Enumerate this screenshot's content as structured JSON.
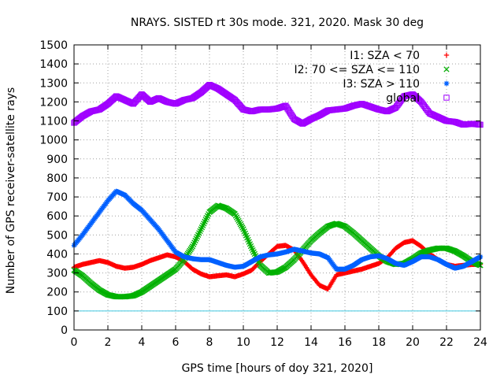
{
  "chart_data": {
    "type": "scatter",
    "title": "NRAYS. SISTED rt 30s mode. 321, 2020. Mask 30 deg",
    "xlabel": "GPS time [hours of doy 321, 2020]",
    "ylabel": "Number of GPS receiver-satellite rays",
    "xlim": [
      0,
      24
    ],
    "ylim": [
      0,
      1500
    ],
    "xticks": [
      "0",
      "2",
      "4",
      "6",
      "8",
      "10",
      "12",
      "14",
      "16",
      "18",
      "20",
      "22",
      "24"
    ],
    "yticks": [
      "0",
      "100",
      "200",
      "300",
      "400",
      "500",
      "600",
      "700",
      "800",
      "900",
      "1000",
      "1100",
      "1200",
      "1300",
      "1400",
      "1500"
    ],
    "grid": true,
    "legend_position": "top-right",
    "reference_line": {
      "y": 100,
      "color": "#40c8e0"
    },
    "series": [
      {
        "name": "I1: SZA < 70",
        "marker": "+",
        "color": "#ff0000",
        "x": [
          0,
          0.5,
          1,
          1.5,
          2,
          2.5,
          3,
          3.5,
          4,
          4.5,
          5,
          5.5,
          6,
          6.5,
          7,
          7.5,
          8,
          8.5,
          9,
          9.5,
          10,
          10.5,
          11,
          11.5,
          12,
          12.5,
          13,
          13.5,
          14,
          14.5,
          15,
          15.5,
          16,
          16.5,
          17,
          17.5,
          18,
          18.5,
          19,
          19.5,
          20,
          20.5,
          21,
          21.5,
          22,
          22.5,
          23,
          23.5,
          24
        ],
        "values": [
          330,
          345,
          355,
          365,
          355,
          335,
          325,
          330,
          345,
          365,
          380,
          395,
          385,
          360,
          320,
          295,
          280,
          285,
          290,
          280,
          295,
          315,
          360,
          400,
          440,
          445,
          420,
          360,
          290,
          235,
          215,
          290,
          300,
          310,
          320,
          335,
          350,
          380,
          430,
          460,
          470,
          440,
          400,
          370,
          345,
          335,
          340,
          345,
          345
        ]
      },
      {
        "name": "I2: 70 <= SZA <= 110",
        "marker": "x",
        "color": "#00b000",
        "x": [
          0,
          0.5,
          1,
          1.5,
          2,
          2.5,
          3,
          3.5,
          4,
          4.5,
          5,
          5.5,
          6,
          6.5,
          7,
          7.5,
          8,
          8.5,
          9,
          9.5,
          10,
          10.5,
          11,
          11.5,
          12,
          12.5,
          13,
          13.5,
          14,
          14.5,
          15,
          15.5,
          16,
          16.5,
          17,
          17.5,
          18,
          18.5,
          19,
          19.5,
          20,
          20.5,
          21,
          21.5,
          22,
          22.5,
          23,
          23.5,
          24
        ],
        "values": [
          315,
          285,
          245,
          210,
          185,
          175,
          175,
          180,
          200,
          230,
          260,
          290,
          320,
          370,
          440,
          530,
          620,
          655,
          640,
          610,
          530,
          430,
          340,
          300,
          305,
          330,
          370,
          420,
          470,
          510,
          545,
          560,
          545,
          510,
          470,
          430,
          390,
          360,
          345,
          350,
          375,
          405,
          420,
          430,
          430,
          415,
          390,
          360,
          340
        ]
      },
      {
        "name": "I3: SZA > 110",
        "marker": "*",
        "color": "#0060ff",
        "x": [
          0,
          0.5,
          1,
          1.5,
          2,
          2.5,
          3,
          3.5,
          4,
          4.5,
          5,
          5.5,
          6,
          6.5,
          7,
          7.5,
          8,
          8.5,
          9,
          9.5,
          10,
          10.5,
          11,
          11.5,
          12,
          12.5,
          13,
          13.5,
          14,
          14.5,
          15,
          15.5,
          16,
          16.5,
          17,
          17.5,
          18,
          18.5,
          19,
          19.5,
          20,
          20.5,
          21,
          21.5,
          22,
          22.5,
          23,
          23.5,
          24
        ],
        "values": [
          445,
          500,
          560,
          620,
          680,
          730,
          710,
          665,
          630,
          580,
          530,
          470,
          410,
          385,
          375,
          370,
          370,
          355,
          340,
          330,
          335,
          360,
          385,
          395,
          400,
          410,
          425,
          415,
          405,
          400,
          380,
          320,
          320,
          340,
          370,
          385,
          390,
          375,
          350,
          340,
          360,
          385,
          385,
          370,
          345,
          325,
          335,
          360,
          385
        ]
      },
      {
        "name": "global",
        "marker": "square",
        "color": "#a000ff",
        "x": [
          0,
          0.5,
          1,
          1.5,
          2,
          2.5,
          3,
          3.5,
          4,
          4.5,
          5,
          5.5,
          6,
          6.5,
          7,
          7.5,
          8,
          8.5,
          9,
          9.5,
          10,
          10.5,
          11,
          11.5,
          12,
          12.5,
          13,
          13.5,
          14,
          14.5,
          15,
          15.5,
          16,
          16.5,
          17,
          17.5,
          18,
          18.5,
          19,
          19.5,
          20,
          20.5,
          21,
          21.5,
          22,
          22.5,
          23,
          23.5,
          24
        ],
        "values": [
          1090,
          1125,
          1150,
          1160,
          1190,
          1230,
          1210,
          1190,
          1240,
          1200,
          1220,
          1200,
          1190,
          1210,
          1220,
          1250,
          1290,
          1270,
          1240,
          1210,
          1160,
          1150,
          1160,
          1160,
          1165,
          1180,
          1110,
          1085,
          1110,
          1130,
          1155,
          1160,
          1165,
          1180,
          1190,
          1175,
          1160,
          1150,
          1170,
          1230,
          1240,
          1200,
          1140,
          1120,
          1100,
          1095,
          1080,
          1085,
          1080
        ]
      }
    ]
  }
}
